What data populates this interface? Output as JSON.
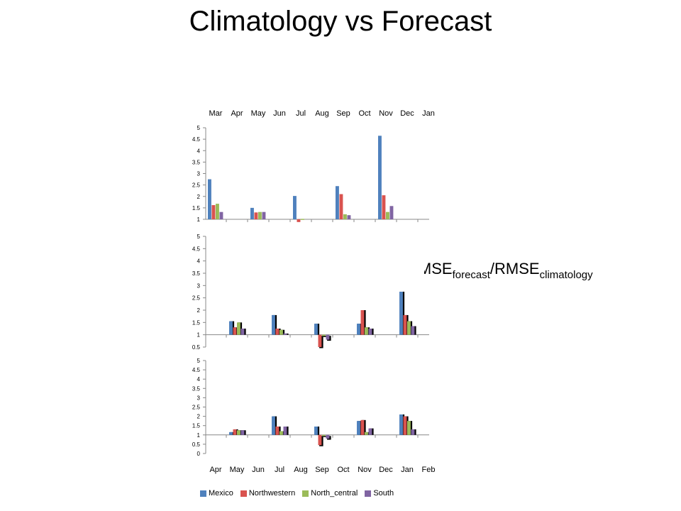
{
  "title": "Climatology vs Forecast",
  "ratio_label": {
    "main": "RMSE",
    "sub1": "forecast",
    "slash": "/RMSE",
    "sub2": "climatology"
  },
  "colors": {
    "Mexico": "#4f81bd",
    "Northwestern": "#d9534f",
    "North_central": "#9bbb59",
    "South": "#8064a2"
  },
  "chart_data": [
    {
      "type": "bar",
      "categories": [
        "Mar",
        "Apr",
        "May",
        "Jun",
        "Jul",
        "Aug",
        "Sep",
        "Oct",
        "Nov",
        "Dec",
        "Jan"
      ],
      "category_labels_position": "top",
      "baseline": 1,
      "ylim": [
        1,
        5
      ],
      "yticks": [
        "1",
        "1.5",
        "2",
        "2.5",
        "3",
        "3.5",
        "4",
        "4.5",
        "5"
      ],
      "series": [
        {
          "name": "Mexico",
          "values": [
            2.75,
            null,
            1.5,
            null,
            2.02,
            null,
            2.45,
            null,
            4.65,
            null,
            null
          ]
        },
        {
          "name": "Northwestern",
          "values": [
            1.62,
            null,
            1.3,
            null,
            0.88,
            null,
            2.1,
            null,
            2.05,
            null,
            null
          ]
        },
        {
          "name": "North_central",
          "values": [
            1.68,
            null,
            1.32,
            null,
            1.02,
            null,
            1.22,
            null,
            1.32,
            null,
            null
          ]
        },
        {
          "name": "South",
          "values": [
            1.32,
            null,
            1.32,
            null,
            null,
            null,
            1.18,
            null,
            1.58,
            null,
            null
          ]
        }
      ]
    },
    {
      "type": "bar",
      "categories": [
        "Mar",
        "Apr",
        "May",
        "Jun",
        "Jul",
        "Aug",
        "Sep",
        "Oct",
        "Nov",
        "Dec",
        "Jan"
      ],
      "baseline": 1,
      "ylim": [
        0.5,
        5
      ],
      "yticks": [
        "0.5",
        "1",
        "1.5",
        "2",
        "2.5",
        "3",
        "3.5",
        "4",
        "4.5",
        "5"
      ],
      "series": [
        {
          "name": "Mexico",
          "values": [
            null,
            1.55,
            null,
            1.8,
            null,
            1.45,
            null,
            1.45,
            null,
            2.75,
            null
          ]
        },
        {
          "name": "Northwestern",
          "values": [
            null,
            1.3,
            null,
            1.25,
            null,
            0.5,
            null,
            2.0,
            null,
            1.8,
            null
          ]
        },
        {
          "name": "North_central",
          "values": [
            null,
            1.5,
            null,
            1.2,
            null,
            0.95,
            null,
            1.3,
            null,
            1.55,
            null
          ]
        },
        {
          "name": "South",
          "values": [
            null,
            1.25,
            null,
            1.05,
            null,
            0.8,
            null,
            1.25,
            null,
            1.35,
            null
          ]
        }
      ]
    },
    {
      "type": "bar",
      "categories": [
        "Apr",
        "May",
        "Jun",
        "Jul",
        "Aug",
        "Sep",
        "Oct",
        "Nov",
        "Dec",
        "Jan",
        "Feb"
      ],
      "category_labels_position": "bottom",
      "baseline": 1,
      "ylim": [
        0,
        5
      ],
      "yticks": [
        "0",
        "0.5",
        "1",
        "1.5",
        "2",
        "2.5",
        "3",
        "3.5",
        "4",
        "4.5",
        "5"
      ],
      "series": [
        {
          "name": "Mexico",
          "values": [
            null,
            1.15,
            null,
            2.0,
            null,
            1.45,
            null,
            1.75,
            null,
            2.1,
            null
          ]
        },
        {
          "name": "Northwestern",
          "values": [
            null,
            1.3,
            null,
            1.45,
            null,
            0.45,
            null,
            1.8,
            null,
            2.0,
            null
          ]
        },
        {
          "name": "North_central",
          "values": [
            null,
            1.25,
            null,
            1.2,
            null,
            0.95,
            null,
            1.15,
            null,
            1.75,
            null
          ]
        },
        {
          "name": "South",
          "values": [
            null,
            1.25,
            null,
            1.45,
            null,
            0.8,
            null,
            1.35,
            null,
            1.3,
            null
          ]
        }
      ]
    }
  ],
  "legend": [
    {
      "name": "Mexico",
      "color": "#4f81bd"
    },
    {
      "name": "Northwestern",
      "color": "#d9534f"
    },
    {
      "name": "North_central",
      "color": "#9bbb59"
    },
    {
      "name": "South",
      "color": "#8064a2"
    }
  ]
}
